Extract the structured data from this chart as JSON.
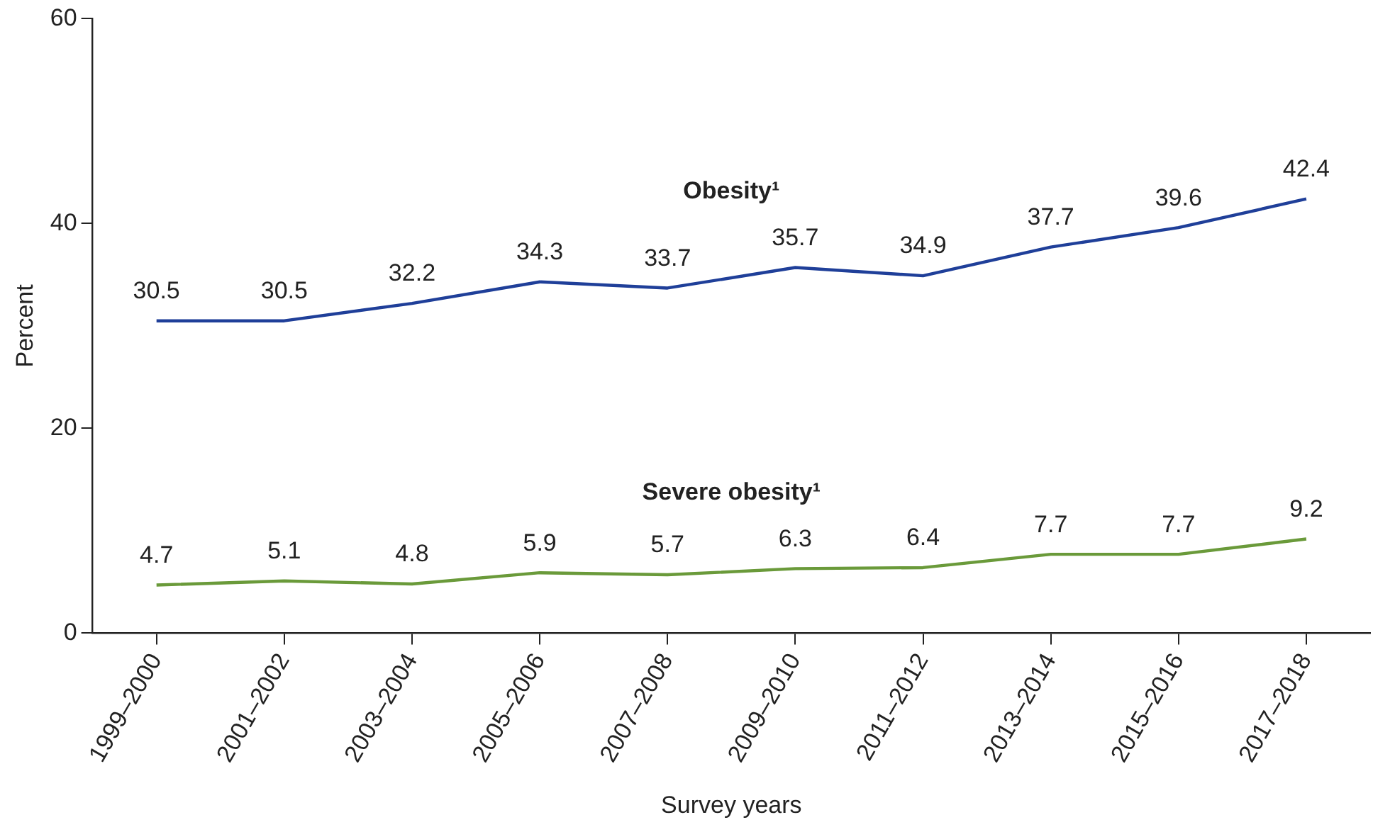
{
  "chart_data": {
    "type": "line",
    "xlabel": "Survey years",
    "ylabel": "Percent",
    "categories": [
      "1999–2000",
      "2001–2002",
      "2003–2004",
      "2005–2006",
      "2007–2008",
      "2009–2010",
      "2011–2012",
      "2013–2014",
      "2015–2016",
      "2017–2018"
    ],
    "series": [
      {
        "name": "Obesity¹",
        "color": "#1f3f99",
        "values": [
          30.5,
          30.5,
          32.2,
          34.3,
          33.7,
          35.7,
          34.9,
          37.7,
          39.6,
          42.4
        ]
      },
      {
        "name": "Severe obesity¹",
        "color": "#6a9a3a",
        "values": [
          4.7,
          5.1,
          4.8,
          5.9,
          5.7,
          6.3,
          6.4,
          7.7,
          7.7,
          9.2
        ]
      }
    ],
    "ylim": [
      0,
      60
    ],
    "yticks": [
      0,
      20,
      40,
      60
    ],
    "grid": false,
    "legend": false,
    "marker": "none",
    "line_style": "solid",
    "data_labels": true
  }
}
